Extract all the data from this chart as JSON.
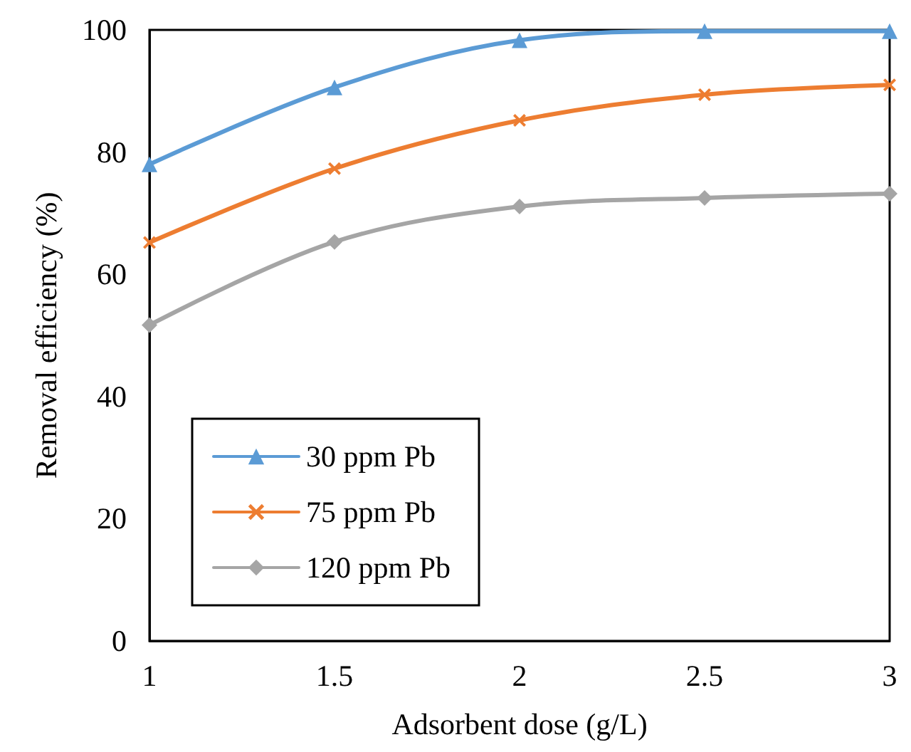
{
  "chart_data": {
    "type": "line",
    "xlabel": "Adsorbent dose (g/L)",
    "ylabel": "Removal efficiency (%)",
    "x": [
      1,
      1.5,
      2,
      2.5,
      3
    ],
    "xlim": [
      1,
      3
    ],
    "xticks": [
      1,
      1.5,
      2,
      2.5,
      3
    ],
    "ylim": [
      0,
      100
    ],
    "yticks": [
      0,
      20,
      40,
      60,
      80,
      100
    ],
    "grid": false,
    "legend": "bottom left",
    "series": [
      {
        "name": "30 ppm Pb",
        "color": "#5b9bd5",
        "marker": "triangle",
        "values": [
          78,
          90.6,
          98.3,
          99.8,
          99.8
        ]
      },
      {
        "name": "75 ppm Pb",
        "color": "#ed7d31",
        "marker": "cross",
        "values": [
          65.2,
          77.3,
          85.2,
          89.4,
          91
        ]
      },
      {
        "name": "120 ppm Pb",
        "color": "#a5a5a5",
        "marker": "diamond",
        "values": [
          51.7,
          65.3,
          71.1,
          72.5,
          73.2
        ]
      }
    ]
  }
}
